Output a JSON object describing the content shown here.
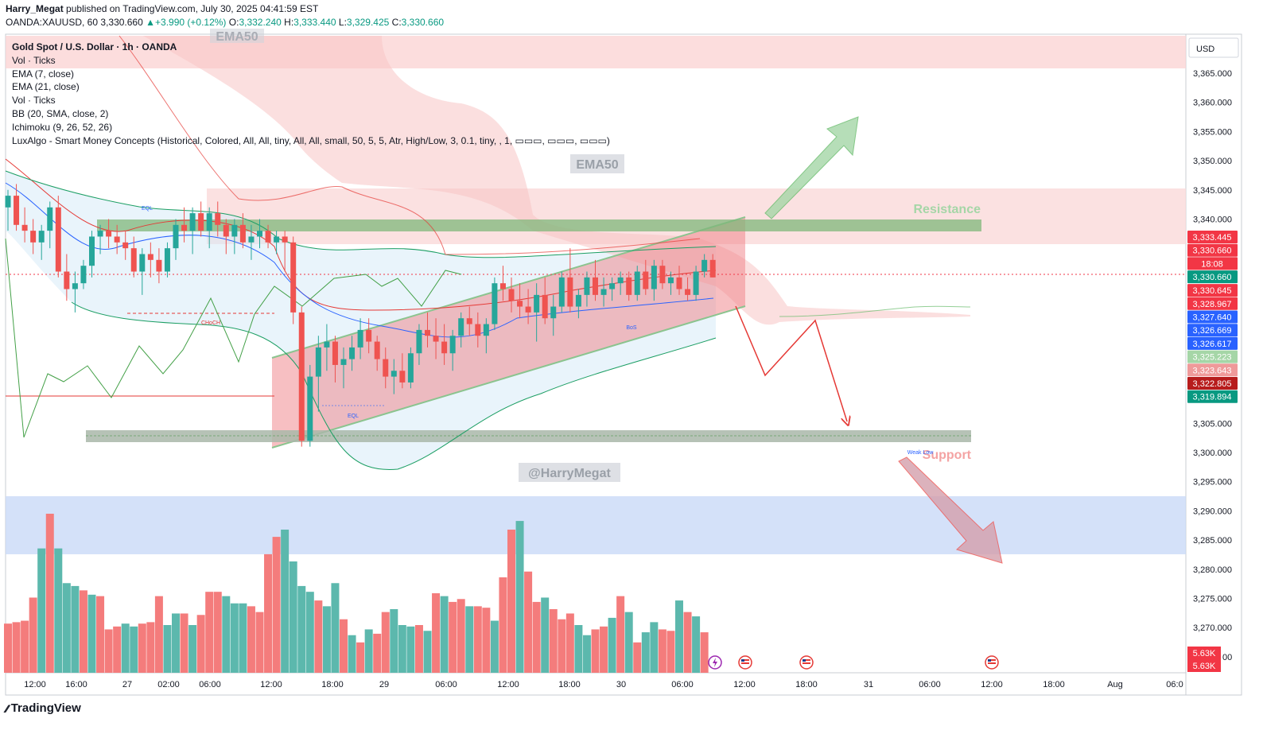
{
  "header": {
    "author": "Harry_Megat",
    "published_text": "published on TradingView.com, July 30, 2025 04:41:59 EST",
    "symbol": "OANDA:XAUUSD, 60",
    "last": "3,330.660",
    "change": "+3.990 (+0.12%)",
    "open": "3,332.240",
    "high": "3,333.440",
    "low": "3,329.425",
    "close": "3,330.660"
  },
  "legend": {
    "title": "Gold Spot / U.S. Dollar · 1h · OANDA",
    "indicators": [
      "Vol · Ticks",
      "EMA (7, close)",
      "EMA (21, close)",
      "Vol · Ticks",
      "BB (20, SMA, close, 2)",
      "Ichimoku (9, 26, 52, 26)",
      "LuxAlgo - Smart Money Concepts (Historical, Colored, All, All, tiny, All, All, small, 50, 5, 5, Atr, High/Low, 3, 0.1, tiny, , 1, ▭▭▭, ▭▭▭, ▭▭▭)"
    ]
  },
  "annotations": {
    "ema50_top": "EMA50",
    "ema50": "EMA50",
    "resistance": "Resistance",
    "support": "Support",
    "watermark": "@HarryMegat",
    "eql": "EQL",
    "eql2": "EQL",
    "choch": "CHoCH",
    "bos": "BoS",
    "weak_low": "Weak Low"
  },
  "footer": {
    "brand": "TradingView",
    "logo_glyph": "⁄⁄"
  },
  "colors": {
    "bull": "#26a69a",
    "bear": "#ef5350",
    "vol_bull": "#5cb8ad",
    "vol_bear": "#f47c7c",
    "ema7": "#2962ff",
    "ema21": "#e53935",
    "bb": "#1b9e63",
    "resistance_zone": "#f7c5c5",
    "support_zone": "#b3ccf6",
    "channel": "#e57373"
  },
  "chart_data": {
    "type": "candlestick",
    "symbol": "OANDA:XAUUSD",
    "timeframe": "1h",
    "currency": "USD",
    "price_ticks": [
      3365,
      3360,
      3355,
      3350,
      3345,
      3340,
      3305,
      3300,
      3295,
      3290,
      3285,
      3280,
      3275,
      3270
    ],
    "price_tick_labels": [
      "3,365.000",
      "3,360.000",
      "3,355.000",
      "3,350.000",
      "3,345.000",
      "3,340.000",
      "3,305.000",
      "3,300.000",
      "3,295.000",
      "3,290.000",
      "3,285.000",
      "3,280.000",
      "3,275.000",
      "3,270.000"
    ],
    "partial_tick_label": "3,2",
    "partial_tick_label_tail": "00",
    "time_labels": [
      "12:00",
      "16:00",
      "27",
      "02:00",
      "06:00",
      "12:00",
      "18:00",
      "29",
      "06:00",
      "12:00",
      "18:00",
      "30",
      "06:00",
      "12:00",
      "18:00",
      "31",
      "06:00",
      "12:00",
      "18:00",
      "Aug",
      "06:0"
    ],
    "price_badges": [
      {
        "label": "3,333.445",
        "color": "#f23645"
      },
      {
        "label": "3,330.660",
        "color": "#f23645"
      },
      {
        "label": "18:08",
        "color": "#f23645"
      },
      {
        "label": "3,330.660",
        "color": "#089981"
      },
      {
        "label": "3,330.645",
        "color": "#f23645"
      },
      {
        "label": "3,328.967",
        "color": "#f23645"
      },
      {
        "label": "3,327.640",
        "color": "#2962ff"
      },
      {
        "label": "3,326.669",
        "color": "#2962ff"
      },
      {
        "label": "3,326.617",
        "color": "#2962ff"
      },
      {
        "label": "3,325.223",
        "color": "#a5d6a7"
      },
      {
        "label": "3,323.643",
        "color": "#ef9a9a"
      },
      {
        "label": "3,322.805",
        "color": "#b71c1c"
      },
      {
        "label": "3,319.894",
        "color": "#089981"
      }
    ],
    "volume_badges": [
      "5.63K",
      "5.63K"
    ],
    "candles": [
      [
        3342,
        3345,
        3338,
        3344
      ],
      [
        3344,
        3346,
        3338,
        3339
      ],
      [
        3339,
        3342,
        3336,
        3338
      ],
      [
        3338,
        3340,
        3334,
        3336
      ],
      [
        3336,
        3339,
        3333,
        3338
      ],
      [
        3338,
        3343,
        3335,
        3342
      ],
      [
        3342,
        3344,
        3330,
        3331
      ],
      [
        3331,
        3334,
        3326,
        3328
      ],
      [
        3328,
        3331,
        3324,
        3329
      ],
      [
        3329,
        3333,
        3328,
        3332
      ],
      [
        3332,
        3338,
        3330,
        3337
      ],
      [
        3337,
        3339,
        3334,
        3338
      ],
      [
        3338,
        3340,
        3335,
        3337
      ],
      [
        3337,
        3339,
        3334,
        3336
      ],
      [
        3336,
        3338,
        3333,
        3335
      ],
      [
        3335,
        3337,
        3330,
        3331
      ],
      [
        3331,
        3335,
        3327,
        3334
      ],
      [
        3334,
        3336,
        3330,
        3333
      ],
      [
        3333,
        3335,
        3329,
        3331
      ],
      [
        3331,
        3336,
        3330,
        3335
      ],
      [
        3335,
        3340,
        3333,
        3339
      ],
      [
        3339,
        3342,
        3336,
        3338
      ],
      [
        3338,
        3342,
        3334,
        3341
      ],
      [
        3341,
        3343,
        3337,
        3338
      ],
      [
        3338,
        3342,
        3335,
        3341
      ],
      [
        3341,
        3343,
        3337,
        3339
      ],
      [
        3339,
        3340,
        3334,
        3337
      ],
      [
        3337,
        3340,
        3334,
        3339
      ],
      [
        3339,
        3341,
        3335,
        3336
      ],
      [
        3336,
        3339,
        3333,
        3337
      ],
      [
        3337,
        3340,
        3335,
        3338
      ],
      [
        3338,
        3339,
        3335,
        3336
      ],
      [
        3336,
        3338,
        3334,
        3337
      ],
      [
        3337,
        3338,
        3331,
        3336
      ],
      [
        3336,
        3337,
        3322,
        3324
      ],
      [
        3324,
        3325,
        3301,
        3302
      ],
      [
        3302,
        3315,
        3301,
        3313
      ],
      [
        3313,
        3320,
        3307,
        3318
      ],
      [
        3318,
        3322,
        3314,
        3319
      ],
      [
        3319,
        3320,
        3312,
        3315
      ],
      [
        3315,
        3318,
        3311,
        3316
      ],
      [
        3316,
        3320,
        3314,
        3318
      ],
      [
        3318,
        3323,
        3316,
        3321
      ],
      [
        3321,
        3323,
        3317,
        3319
      ],
      [
        3319,
        3320,
        3314,
        3316
      ],
      [
        3316,
        3318,
        3311,
        3313
      ],
      [
        3313,
        3316,
        3310,
        3314
      ],
      [
        3314,
        3317,
        3311,
        3312
      ],
      [
        3312,
        3318,
        3311,
        3317
      ],
      [
        3317,
        3322,
        3315,
        3321
      ],
      [
        3321,
        3324,
        3318,
        3320
      ],
      [
        3320,
        3323,
        3316,
        3319
      ],
      [
        3319,
        3322,
        3315,
        3317
      ],
      [
        3317,
        3321,
        3314,
        3320
      ],
      [
        3320,
        3324,
        3318,
        3323
      ],
      [
        3323,
        3325,
        3320,
        3322
      ],
      [
        3322,
        3324,
        3318,
        3320
      ],
      [
        3320,
        3323,
        3317,
        3322
      ],
      [
        3322,
        3330,
        3321,
        3329
      ],
      [
        3329,
        3332,
        3326,
        3328
      ],
      [
        3328,
        3330,
        3324,
        3326
      ],
      [
        3326,
        3329,
        3323,
        3325
      ],
      [
        3325,
        3328,
        3322,
        3324
      ],
      [
        3324,
        3329,
        3319,
        3327
      ],
      [
        3327,
        3330,
        3322,
        3323
      ],
      [
        3323,
        3327,
        3320,
        3325
      ],
      [
        3325,
        3331,
        3324,
        3330
      ],
      [
        3330,
        3335,
        3324,
        3325
      ],
      [
        3325,
        3328,
        3323,
        3327
      ],
      [
        3327,
        3331,
        3325,
        3330
      ],
      [
        3330,
        3333,
        3326,
        3327
      ],
      [
        3327,
        3330,
        3325,
        3328
      ],
      [
        3328,
        3330,
        3326,
        3329
      ],
      [
        3329,
        3331,
        3327,
        3330
      ],
      [
        3330,
        3331,
        3326,
        3327
      ],
      [
        3327,
        3332,
        3326,
        3331
      ],
      [
        3331,
        3333,
        3327,
        3328
      ],
      [
        3328,
        3333,
        3326,
        3332
      ],
      [
        3332,
        3333,
        3328,
        3329
      ],
      [
        3329,
        3331,
        3327,
        3330
      ],
      [
        3330,
        3332,
        3327,
        3328
      ],
      [
        3328,
        3330,
        3326,
        3327
      ],
      [
        3327,
        3332,
        3326,
        3331
      ],
      [
        3331,
        3334,
        3330,
        3333
      ],
      [
        3333,
        3334,
        3330,
        3330
      ]
    ],
    "volumes": [
      [
        34,
        0
      ],
      [
        35,
        0
      ],
      [
        36,
        0
      ],
      [
        52,
        0
      ],
      [
        86,
        1
      ],
      [
        110,
        0
      ],
      [
        86,
        1
      ],
      [
        62,
        1
      ],
      [
        60,
        1
      ],
      [
        57,
        0
      ],
      [
        54,
        1
      ],
      [
        53,
        0
      ],
      [
        30,
        0
      ],
      [
        32,
        0
      ],
      [
        34,
        1
      ],
      [
        32,
        1
      ],
      [
        34,
        0
      ],
      [
        35,
        0
      ],
      [
        53,
        0
      ],
      [
        33,
        1
      ],
      [
        41,
        1
      ],
      [
        41,
        0
      ],
      [
        33,
        1
      ],
      [
        40,
        0
      ],
      [
        56,
        0
      ],
      [
        56,
        0
      ],
      [
        53,
        1
      ],
      [
        48,
        1
      ],
      [
        48,
        1
      ],
      [
        46,
        0
      ],
      [
        42,
        0
      ],
      [
        82,
        0
      ],
      [
        94,
        0
      ],
      [
        99,
        1
      ],
      [
        77,
        1
      ],
      [
        60,
        1
      ],
      [
        56,
        1
      ],
      [
        50,
        0
      ],
      [
        46,
        1
      ],
      [
        62,
        1
      ],
      [
        37,
        0
      ],
      [
        26,
        1
      ],
      [
        21,
        0
      ],
      [
        30,
        1
      ],
      [
        27,
        0
      ],
      [
        42,
        0
      ],
      [
        44,
        1
      ],
      [
        33,
        1
      ],
      [
        32,
        1
      ],
      [
        33,
        0
      ],
      [
        29,
        1
      ],
      [
        55,
        0
      ],
      [
        53,
        1
      ],
      [
        49,
        0
      ],
      [
        51,
        0
      ],
      [
        46,
        1
      ],
      [
        46,
        0
      ],
      [
        45,
        0
      ],
      [
        36,
        1
      ],
      [
        66,
        0
      ],
      [
        99,
        0
      ],
      [
        105,
        1
      ],
      [
        70,
        0
      ],
      [
        49,
        0
      ],
      [
        52,
        1
      ],
      [
        44,
        0
      ],
      [
        37,
        0
      ],
      [
        41,
        0
      ],
      [
        33,
        1
      ],
      [
        26,
        1
      ],
      [
        30,
        0
      ],
      [
        32,
        0
      ],
      [
        38,
        1
      ],
      [
        53,
        0
      ],
      [
        42,
        1
      ],
      [
        21,
        0
      ],
      [
        28,
        1
      ],
      [
        35,
        1
      ],
      [
        30,
        0
      ],
      [
        29,
        0
      ],
      [
        50,
        1
      ],
      [
        42,
        0
      ],
      [
        39,
        1
      ],
      [
        28,
        0
      ]
    ]
  }
}
